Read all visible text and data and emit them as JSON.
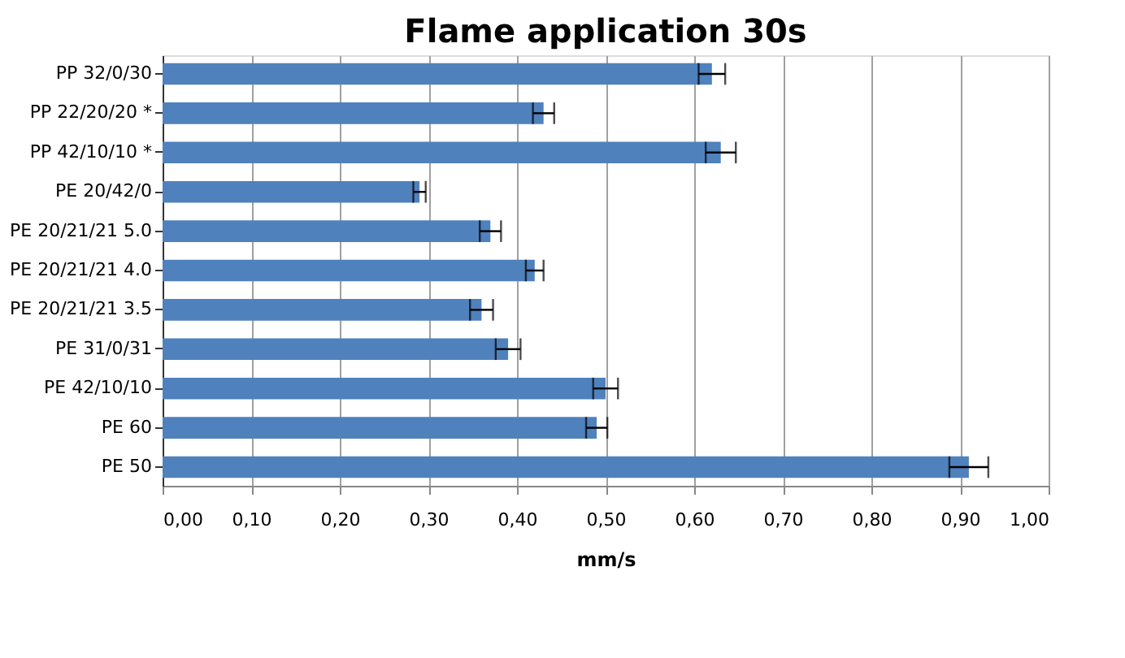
{
  "chart_data": {
    "type": "bar",
    "orientation": "horizontal",
    "title": "Flame application 30s",
    "xlabel": "mm/s",
    "categories": [
      "PP 32/0/30",
      "PP 22/20/20 *",
      "PP 42/10/10 *",
      "PE 20/42/0",
      "PE 20/21/21 5.0",
      "PE 20/21/21 4.0",
      "PE 20/21/21 3.5",
      "PE 31/0/31",
      "PE 42/10/10",
      "PE 60",
      "PE 50"
    ],
    "values": [
      0.62,
      0.43,
      0.63,
      0.29,
      0.37,
      0.42,
      0.36,
      0.39,
      0.5,
      0.49,
      0.91
    ],
    "errors": [
      0.015,
      0.012,
      0.017,
      0.007,
      0.012,
      0.01,
      0.013,
      0.014,
      0.014,
      0.012,
      0.022
    ],
    "color": "#4f81bd",
    "xlim": [
      0,
      1
    ],
    "xticks": [
      {
        "value": 0,
        "label": "0,00"
      },
      {
        "value": 0.1,
        "label": "0,10"
      },
      {
        "value": 0.2,
        "label": "0,20"
      },
      {
        "value": 0.3,
        "label": "0,30"
      },
      {
        "value": 0.4,
        "label": "0,40"
      },
      {
        "value": 0.5,
        "label": "0,50"
      },
      {
        "value": 0.6,
        "label": "0,60"
      },
      {
        "value": 0.7,
        "label": "0,70"
      },
      {
        "value": 0.8,
        "label": "0,80"
      },
      {
        "value": 0.9,
        "label": "0,90"
      },
      {
        "value": 1.0,
        "label": "1,00"
      }
    ],
    "grid": "x"
  }
}
